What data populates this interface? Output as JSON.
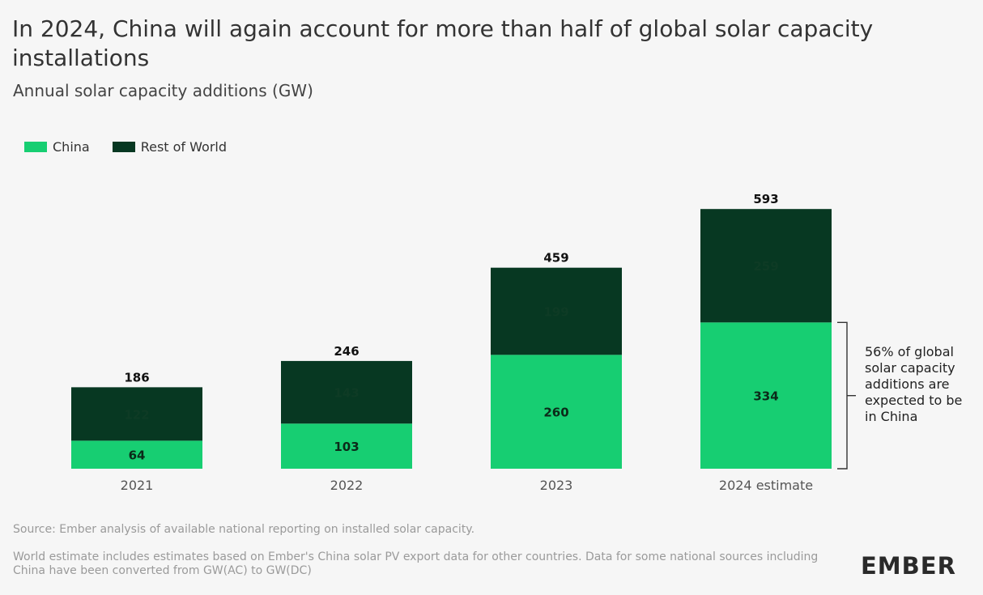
{
  "header": {
    "title": "In 2024, China will again account for more than half of global solar capacity installations",
    "subtitle": "Annual solar capacity additions (GW)"
  },
  "colors": {
    "china": "#17ce72",
    "rest_of_world": "#073822",
    "background": "#f6f6f6"
  },
  "chart_data": {
    "type": "bar",
    "stacked": true,
    "categories": [
      "2021",
      "2022",
      "2023",
      "2024 estimate"
    ],
    "series": [
      {
        "name": "China",
        "values": [
          64,
          103,
          260,
          334
        ]
      },
      {
        "name": "Rest of World",
        "values": [
          122,
          143,
          199,
          259
        ]
      }
    ],
    "totals": [
      186,
      246,
      459,
      593
    ],
    "ylim": [
      0,
      600
    ],
    "legend": "top-left",
    "grid": false,
    "annotation": "56% of global solar capacity additions are expected to be in China"
  },
  "footer": {
    "source": "Source: Ember analysis of available national reporting on installed solar capacity.",
    "note": "World estimate includes estimates based on Ember's China solar PV export data for other countries. Data for some national sources including China have been converted from GW(AC) to GW(DC)",
    "logo": "EMBER"
  }
}
